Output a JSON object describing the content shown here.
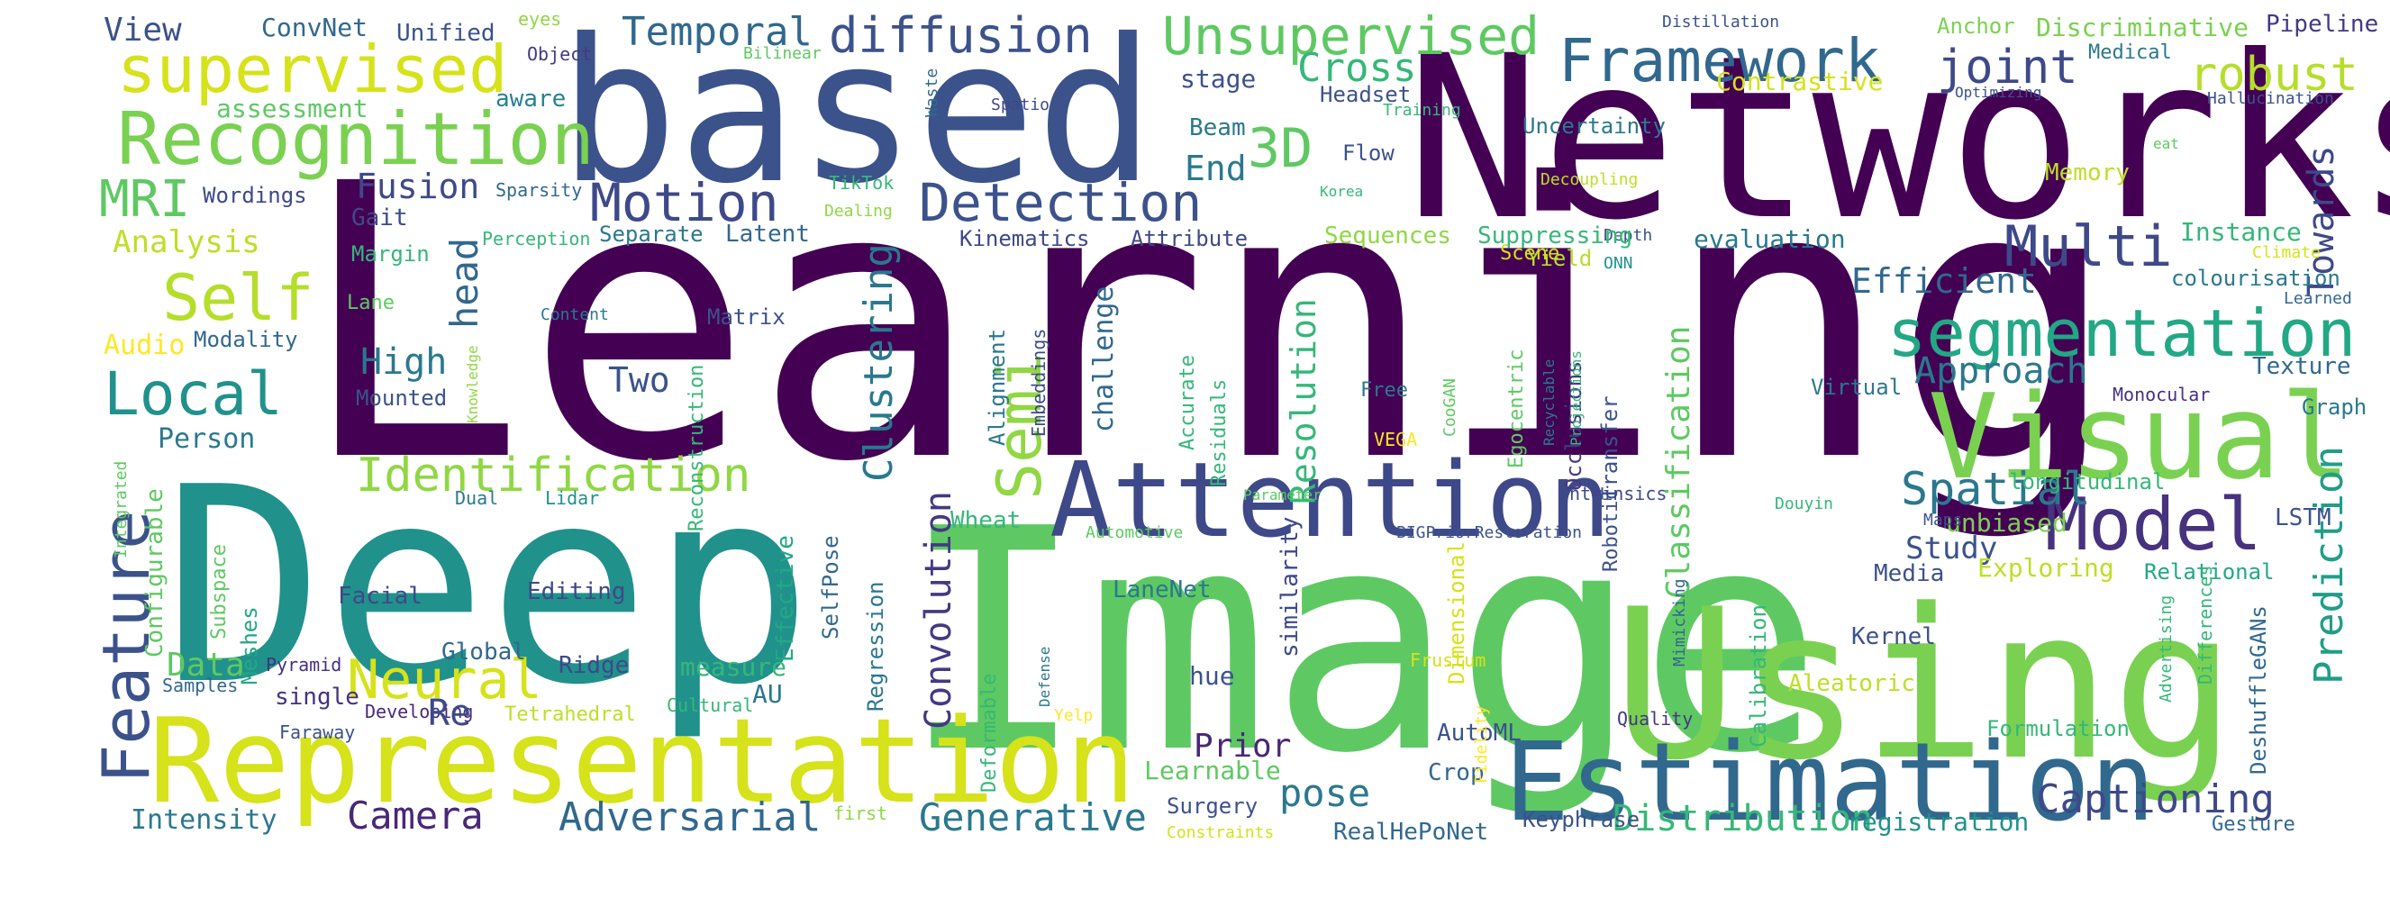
{
  "words": [
    {
      "text": "Learning",
      "color": "#440154"
    },
    {
      "text": "Deep",
      "color": "#21918c"
    },
    {
      "text": "Image",
      "color": "#5ec962"
    },
    {
      "text": "Networks",
      "color": "#440154"
    },
    {
      "text": "based",
      "color": "#3b528b"
    },
    {
      "text": "Using",
      "color": "#7ad151"
    },
    {
      "text": "Representation",
      "color": "#d6e21a"
    },
    {
      "text": "Estimation",
      "color": "#31688e"
    },
    {
      "text": "Attention",
      "color": "#3e4989"
    },
    {
      "text": "Visual",
      "color": "#7ad151"
    },
    {
      "text": "Recognition",
      "color": "#7ad151"
    },
    {
      "text": "supervised",
      "color": "#d6e21a"
    },
    {
      "text": "segmentation",
      "color": "#22a884"
    },
    {
      "text": "Model",
      "color": "#46327e"
    },
    {
      "text": "Framework",
      "color": "#31688e"
    },
    {
      "text": "Unsupervised",
      "color": "#5ec962"
    },
    {
      "text": "diffusion",
      "color": "#3b528b"
    },
    {
      "text": "Detection",
      "color": "#3b528b"
    },
    {
      "text": "Motion",
      "color": "#3e4989"
    },
    {
      "text": "Temporal",
      "color": "#31688e"
    },
    {
      "text": "3D",
      "color": "#5ec962"
    },
    {
      "text": "Cross",
      "color": "#35b779"
    },
    {
      "text": "Multi",
      "color": "#3e4989"
    },
    {
      "text": "joint",
      "color": "#3e4989"
    },
    {
      "text": "robust",
      "color": "#b5de2b"
    },
    {
      "text": "Self",
      "color": "#b5de2b"
    },
    {
      "text": "Local",
      "color": "#21918c"
    },
    {
      "text": "MRI",
      "color": "#5ec962"
    },
    {
      "text": "Feature",
      "color": "#3b528b"
    },
    {
      "text": "Neural",
      "color": "#d6e21a"
    },
    {
      "text": "Identification",
      "color": "#90d743"
    },
    {
      "text": "Semi",
      "color": "#90d743"
    },
    {
      "text": "Spatial",
      "color": "#2a788e"
    },
    {
      "text": "Approach",
      "color": "#2a788e"
    },
    {
      "text": "Efficient",
      "color": "#31688e"
    },
    {
      "text": "Towards",
      "color": "#3e4989"
    },
    {
      "text": "Prediction",
      "color": "#1f9e89"
    },
    {
      "text": "Captioning",
      "color": "#3e4989"
    },
    {
      "text": "Generative",
      "color": "#2a788e"
    },
    {
      "text": "Adversarial",
      "color": "#31688e"
    },
    {
      "text": "Camera",
      "color": "#482878"
    },
    {
      "text": "Distribution",
      "color": "#35b779"
    },
    {
      "text": "pose",
      "color": "#2a788e"
    },
    {
      "text": "Convolution",
      "color": "#443983"
    },
    {
      "text": "Clustering",
      "color": "#2a788e"
    },
    {
      "text": "Resolution",
      "color": "#35b779"
    },
    {
      "text": "Classification",
      "color": "#5ec962"
    },
    {
      "text": "Data",
      "color": "#5ec962"
    },
    {
      "text": "High",
      "color": "#2a788e"
    },
    {
      "text": "head",
      "color": "#31688e"
    },
    {
      "text": "Two",
      "color": "#3b528b"
    },
    {
      "text": "Fusion",
      "color": "#3e4989"
    },
    {
      "text": "End",
      "color": "#2a788e"
    },
    {
      "text": "Prior",
      "color": "#482878"
    },
    {
      "text": "Study",
      "color": "#3b528b"
    },
    {
      "text": "Analysis",
      "color": "#bddf26"
    },
    {
      "text": "View",
      "color": "#3b528b"
    },
    {
      "text": "ConvNet",
      "color": "#31688e"
    },
    {
      "text": "Unified",
      "color": "#3b528b"
    },
    {
      "text": "eyes",
      "color": "#90d743"
    },
    {
      "text": "Object",
      "color": "#443983"
    },
    {
      "text": "aware",
      "color": "#26828e"
    },
    {
      "text": "assessment",
      "color": "#5ec962"
    },
    {
      "text": "Wordings",
      "color": "#3e4989"
    },
    {
      "text": "Sparsity",
      "color": "#31688e"
    },
    {
      "text": "Perception",
      "color": "#35b779"
    },
    {
      "text": "Margin",
      "color": "#35b779"
    },
    {
      "text": "Gait",
      "color": "#3e4989"
    },
    {
      "text": "Lane",
      "color": "#5ec962"
    },
    {
      "text": "Audio",
      "color": "#fde725"
    },
    {
      "text": "Modality",
      "color": "#31688e"
    },
    {
      "text": "Mounted",
      "color": "#3b528b"
    },
    {
      "text": "Knowledge",
      "color": "#90d743"
    },
    {
      "text": "Person",
      "color": "#2a788e"
    },
    {
      "text": "Integrated",
      "color": "#5ec962"
    },
    {
      "text": "Configurable",
      "color": "#5ec962"
    },
    {
      "text": "Subspace",
      "color": "#5ec962"
    },
    {
      "text": "Meshes",
      "color": "#22a884"
    },
    {
      "text": "Dual",
      "color": "#2a788e"
    },
    {
      "text": "Lidar",
      "color": "#21918c"
    },
    {
      "text": "Faraway",
      "color": "#3b528b"
    },
    {
      "text": "Pyramid",
      "color": "#46327e"
    },
    {
      "text": "Samples",
      "color": "#31688e"
    },
    {
      "text": "single",
      "color": "#46327e"
    },
    {
      "text": "Developing",
      "color": "#482878"
    },
    {
      "text": "Tetrahedral",
      "color": "#bddf26"
    },
    {
      "text": "Intensity",
      "color": "#2a788e"
    },
    {
      "text": "Facial",
      "color": "#3e4989"
    },
    {
      "text": "Global",
      "color": "#31688e"
    },
    {
      "text": "Editing",
      "color": "#3e4989"
    },
    {
      "text": "Ridge",
      "color": "#3e4989"
    },
    {
      "text": "Re",
      "color": "#3e4989"
    },
    {
      "text": "measure",
      "color": "#35b779"
    },
    {
      "text": "Cultural",
      "color": "#35b779"
    },
    {
      "text": "AU",
      "color": "#2a788e"
    },
    {
      "text": "Effective",
      "color": "#22a884"
    },
    {
      "text": "SelfPose",
      "color": "#31688e"
    },
    {
      "text": "Regression",
      "color": "#2a788e"
    },
    {
      "text": "Deformable",
      "color": "#35b779"
    },
    {
      "text": "Yelp",
      "color": "#fde725"
    },
    {
      "text": "first",
      "color": "#90d743"
    },
    {
      "text": "Learnable",
      "color": "#5ec962"
    },
    {
      "text": "Surgery",
      "color": "#3b528b"
    },
    {
      "text": "Constraints",
      "color": "#d6e21a"
    },
    {
      "text": "hue",
      "color": "#3b528b"
    },
    {
      "text": "similarity",
      "color": "#3e4989"
    },
    {
      "text": "LaneNet",
      "color": "#2a788e"
    },
    {
      "text": "Wheat",
      "color": "#35b779"
    },
    {
      "text": "Automotive",
      "color": "#5ec962"
    },
    {
      "text": "BIGPriorRestoration",
      "color": "#3b528b"
    },
    {
      "text": "Frustum",
      "color": "#d6e21a"
    },
    {
      "text": "Dimensional",
      "color": "#d6e21a"
    },
    {
      "text": "AutoML",
      "color": "#3b528b"
    },
    {
      "text": "Crop",
      "color": "#31688e"
    },
    {
      "text": "Fidelity",
      "color": "#fde725"
    },
    {
      "text": "Keyphrase",
      "color": "#3b528b"
    },
    {
      "text": "RealHePoNet",
      "color": "#31688e"
    },
    {
      "text": "Quality",
      "color": "#443983"
    },
    {
      "text": "Mimicking",
      "color": "#31688e"
    },
    {
      "text": "Calibration",
      "color": "#35b779"
    },
    {
      "text": "Aleatoric",
      "color": "#bddf26"
    },
    {
      "text": "Kernel",
      "color": "#3b528b"
    },
    {
      "text": "Media",
      "color": "#3b528b"
    },
    {
      "text": "unbiased",
      "color": "#7ad151"
    },
    {
      "text": "Exploring",
      "color": "#bddf26"
    },
    {
      "text": "Relational",
      "color": "#22a884"
    },
    {
      "text": "Advertising",
      "color": "#35b779"
    },
    {
      "text": "Differences",
      "color": "#35b779"
    },
    {
      "text": "DeshuffleGANs",
      "color": "#31688e"
    },
    {
      "text": "Formulation",
      "color": "#35b779"
    },
    {
      "text": "registration",
      "color": "#21918c"
    },
    {
      "text": "Gesture",
      "color": "#31688e"
    },
    {
      "text": "Maps",
      "color": "#3b528b"
    },
    {
      "text": "Douyin",
      "color": "#35b779"
    },
    {
      "text": "longitudinal",
      "color": "#35b779"
    },
    {
      "text": "LSTM",
      "color": "#3b528b"
    },
    {
      "text": "Graph",
      "color": "#2a788e"
    },
    {
      "text": "Monocular",
      "color": "#46327e"
    },
    {
      "text": "Texture",
      "color": "#31688e"
    },
    {
      "text": "Virtual",
      "color": "#2a788e"
    },
    {
      "text": "Learned",
      "color": "#31688e"
    },
    {
      "text": "colourisation",
      "color": "#2a788e"
    },
    {
      "text": "Climate",
      "color": "#d6e21a"
    },
    {
      "text": "Instance",
      "color": "#35b779"
    },
    {
      "text": "evaluation",
      "color": "#2a788e"
    },
    {
      "text": "Depth",
      "color": "#3b528b"
    },
    {
      "text": "ONN",
      "color": "#21918c"
    },
    {
      "text": "Yield",
      "color": "#b5de2b"
    },
    {
      "text": "Scene",
      "color": "#d6e21a"
    },
    {
      "text": "Suppressing",
      "color": "#35b779"
    },
    {
      "text": "Sequences",
      "color": "#90d743"
    },
    {
      "text": "Transfer",
      "color": "#3b528b"
    },
    {
      "text": "Occlusions",
      "color": "#443983"
    },
    {
      "text": "Robotic",
      "color": "#3b528b"
    },
    {
      "text": "Egocentric",
      "color": "#5ec962"
    },
    {
      "text": "Recyclable",
      "color": "#2a788e"
    },
    {
      "text": "Projections",
      "color": "#35b779"
    },
    {
      "text": "Intrinsics",
      "color": "#3e4989"
    },
    {
      "text": "Parameter",
      "color": "#5ec962"
    },
    {
      "text": "CooGAN",
      "color": "#5ec962"
    },
    {
      "text": "VEGA",
      "color": "#fde725"
    },
    {
      "text": "Free",
      "color": "#2a788e"
    },
    {
      "text": "Accurate",
      "color": "#35b779"
    },
    {
      "text": "Residuals",
      "color": "#35b779"
    },
    {
      "text": "Embeddings",
      "color": "#3e4989"
    },
    {
      "text": "Alignment",
      "color": "#2a788e"
    },
    {
      "text": "challenge",
      "color": "#31688e"
    },
    {
      "text": "Matrix",
      "color": "#3b528b"
    },
    {
      "text": "Reconstruction",
      "color": "#35b779"
    },
    {
      "text": "Latent",
      "color": "#31688e"
    },
    {
      "text": "Separate",
      "color": "#2a788e"
    },
    {
      "text": "Kinematics",
      "color": "#3e4989"
    },
    {
      "text": "Attribute",
      "color": "#3e4989"
    },
    {
      "text": "Content",
      "color": "#2a788e"
    },
    {
      "text": "Korea",
      "color": "#35b779"
    },
    {
      "text": "Dealing",
      "color": "#90d743"
    },
    {
      "text": "TikTok",
      "color": "#35b779"
    },
    {
      "text": "Spatio",
      "color": "#3e4989"
    },
    {
      "text": "Flow",
      "color": "#3b528b"
    },
    {
      "text": "Headset",
      "color": "#3b528b"
    },
    {
      "text": "Beam",
      "color": "#2a788e"
    },
    {
      "text": "stage",
      "color": "#3b528b"
    },
    {
      "text": "Training",
      "color": "#35b779"
    },
    {
      "text": "Waste",
      "color": "#31688e"
    },
    {
      "text": "Bilinear",
      "color": "#5ec962"
    },
    {
      "text": "Uncertainty",
      "color": "#2a788e"
    },
    {
      "text": "Contrastive",
      "color": "#d6e21a"
    },
    {
      "text": "Distillation",
      "color": "#3b528b"
    },
    {
      "text": "Decoupling",
      "color": "#bddf26"
    },
    {
      "text": "Anchor",
      "color": "#7ad151"
    },
    {
      "text": "Discriminative",
      "color": "#7ad151"
    },
    {
      "text": "Pipeline",
      "color": "#443983"
    },
    {
      "text": "Medical",
      "color": "#2a788e"
    },
    {
      "text": "Optimizing",
      "color": "#3b528b"
    },
    {
      "text": "Hallucination",
      "color": "#3b528b"
    },
    {
      "text": "eat",
      "color": "#5ec962"
    },
    {
      "text": "Memory",
      "color": "#bddf26"
    },
    {
      "text": "Defense",
      "color": "#2a788e"
    }
  ]
}
